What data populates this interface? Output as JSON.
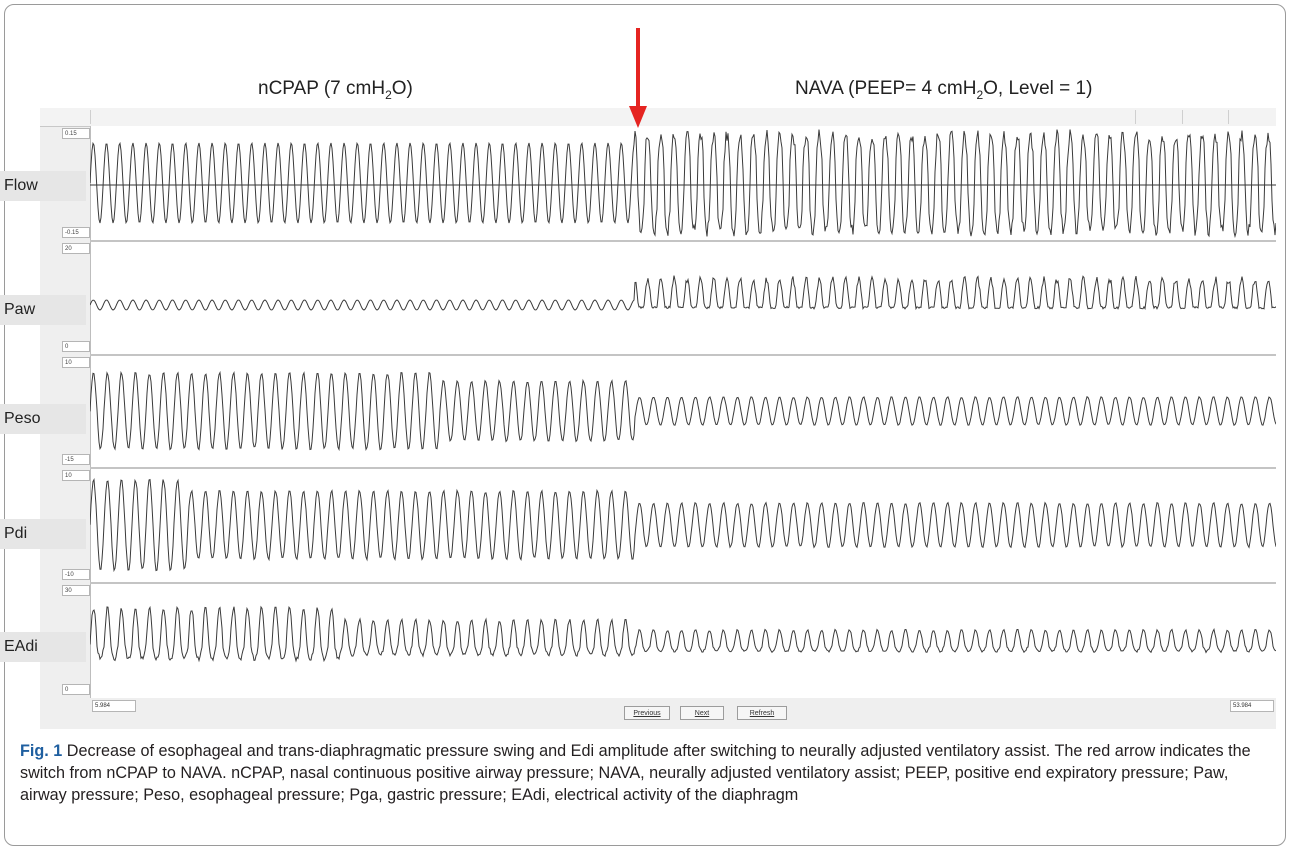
{
  "header": {
    "left_prefix": "nCPAP (7 cmH",
    "left_sub": "2",
    "left_suffix": "O)",
    "right_prefix": "NAVA (PEEP= 4 cmH",
    "right_sub": "2",
    "right_suffix": "O, Level = 1)"
  },
  "marker": {
    "color": "#e52421",
    "description_icon": "arrow-down-icon"
  },
  "channels": [
    {
      "name": "Flow",
      "scale_top": "0.15",
      "scale_bottom": "-0.15"
    },
    {
      "name": "Paw",
      "scale_top": "20",
      "scale_bottom": "0"
    },
    {
      "name": "Peso",
      "scale_top": "10",
      "scale_bottom": "-15"
    },
    {
      "name": "Pdi",
      "scale_top": "10",
      "scale_bottom": "-10"
    },
    {
      "name": "EAdi",
      "scale_top": "30",
      "scale_bottom": "0"
    }
  ],
  "timebar": {
    "start": "5.984",
    "end": "53.984"
  },
  "buttons": {
    "previous": "Previous",
    "next": "Next",
    "refresh": "Refresh"
  },
  "caption": {
    "label": "Fig. 1",
    "text": " Decrease of esophageal and trans-diaphragmatic pressure swing and Edi amplitude after switching to neurally adjusted ventilatory assist. The red arrow indicates the switch from nCPAP to NAVA. nCPAP, nasal continuous positive airway pressure; NAVA, neurally adjusted ventilatory assist; PEEP, positive end expiratory pressure; Paw, airway pressure; Peso, esophageal pressure; Pga, gastric pressure; EAdi, electrical activity of the diaphragm"
  }
}
